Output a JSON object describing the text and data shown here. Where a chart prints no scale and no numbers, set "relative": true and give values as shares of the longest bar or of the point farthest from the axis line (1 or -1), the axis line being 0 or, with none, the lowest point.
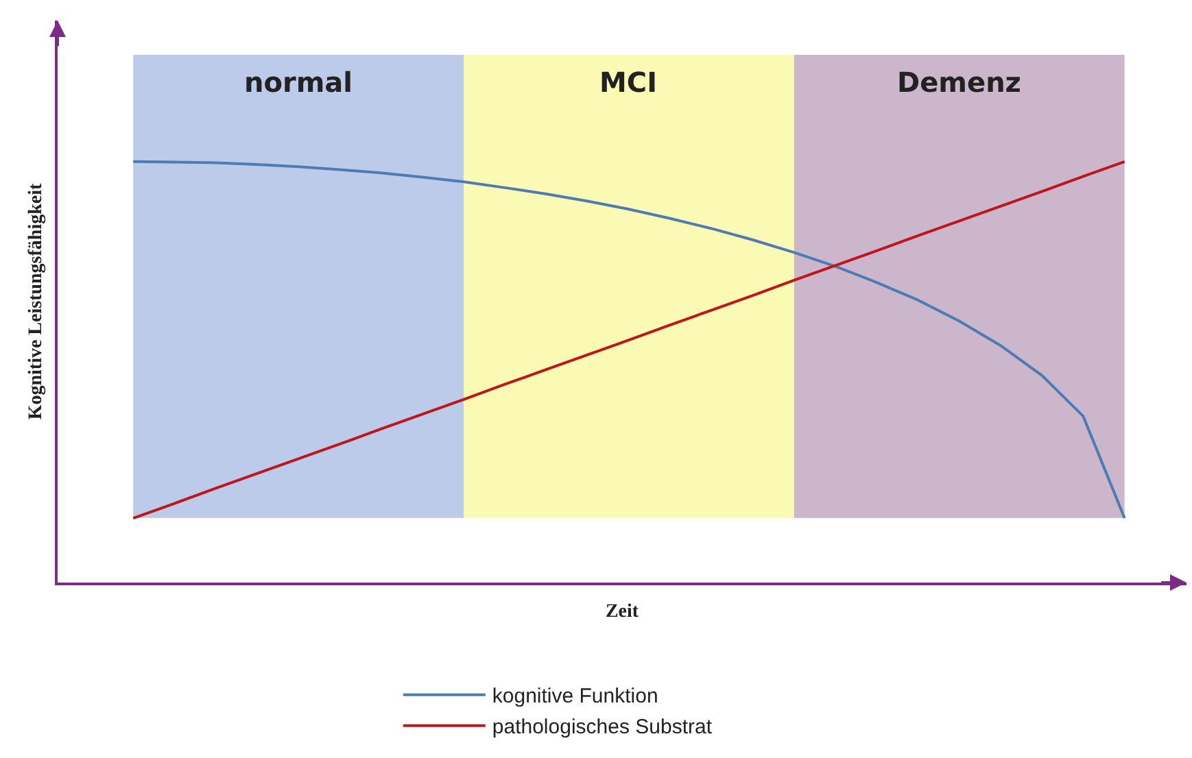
{
  "chart_data": {
    "type": "line",
    "relative": true,
    "xlabel": "Zeit",
    "ylabel": "Kognitive Leistungsfähigkeit",
    "legend": "bottom",
    "marker": "none",
    "line_style": "solid",
    "categories": [
      null,
      null,
      null,
      null,
      null,
      null,
      null,
      null,
      null,
      null,
      null,
      null,
      null,
      null,
      null,
      null,
      null,
      null,
      null,
      null,
      null,
      null,
      null,
      null,
      null
    ],
    "series": [
      {
        "name": "kognitive Funktion",
        "color": "#4f7bb5",
        "values": [
          1.0,
          0.999,
          0.997,
          0.993,
          0.988,
          0.981,
          0.973,
          0.963,
          0.952,
          0.938,
          0.923,
          0.906,
          0.887,
          0.865,
          0.841,
          0.814,
          0.784,
          0.751,
          0.713,
          0.671,
          0.621,
          0.563,
          0.492,
          0.395,
          0.153
        ]
      },
      {
        "name": "pathologisches Substrat",
        "color": "#c0161b",
        "values": [
          0.153,
          0.188,
          0.224,
          0.259,
          0.294,
          0.329,
          0.365,
          0.4,
          0.435,
          0.471,
          0.506,
          0.541,
          0.576,
          0.612,
          0.647,
          0.682,
          0.718,
          0.753,
          0.788,
          0.824,
          0.859,
          0.894,
          0.929,
          0.965,
          1.0
        ]
      }
    ],
    "annotations": [
      "normal",
      "MCI",
      "Demenz"
    ]
  }
}
